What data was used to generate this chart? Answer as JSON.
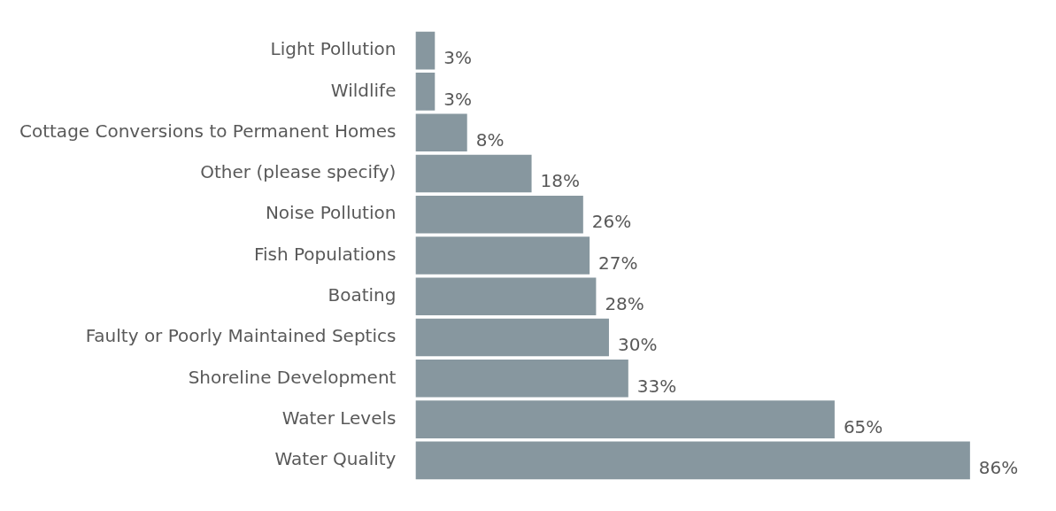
{
  "chart_data": {
    "type": "bar",
    "orientation": "horizontal",
    "categories": [
      "Light Pollution",
      "Wildlife",
      "Cottage Conversions to Permanent Homes",
      "Other (please specify)",
      "Noise Pollution",
      "Fish Populations",
      "Boating",
      "Faulty or Poorly Maintained Septics",
      "Shoreline Development",
      "Water Levels",
      "Water Quality"
    ],
    "values": [
      3,
      3,
      8,
      18,
      26,
      27,
      28,
      30,
      33,
      65,
      86
    ],
    "value_labels": [
      "3%",
      "3%",
      "8%",
      "18%",
      "26%",
      "27%",
      "28%",
      "30%",
      "33%",
      "65%",
      "86%"
    ],
    "color": "#87979f"
  }
}
